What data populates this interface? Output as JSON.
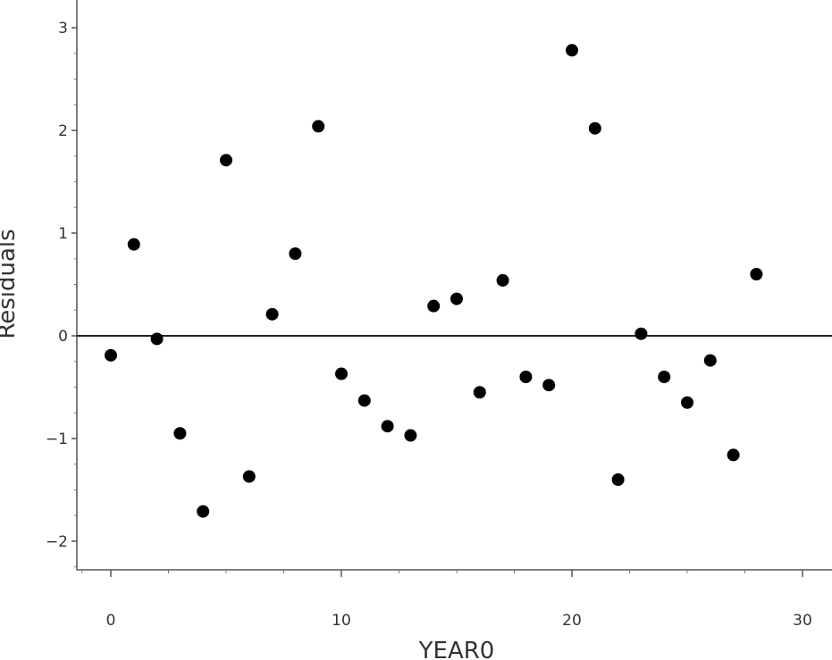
{
  "chart_data": {
    "type": "scatter",
    "title": "",
    "xlabel": "YEAR0",
    "ylabel": "Residuals",
    "xlim": [
      -1.5,
      31
    ],
    "ylim": [
      -2.3,
      3.3
    ],
    "x_ticks": [
      0,
      10,
      20,
      30
    ],
    "y_ticks": [
      -2,
      -1,
      0,
      1,
      2,
      3
    ],
    "x_tick_labels": [
      "0",
      "10",
      "20",
      "30"
    ],
    "y_tick_labels": [
      "−2",
      "−1",
      "0",
      "1",
      "2",
      "3"
    ],
    "reference_line_y": 0,
    "grid": false,
    "legend": "none",
    "marker_color": "#000000",
    "series": [
      {
        "points": [
          {
            "x": 0,
            "y": -0.19
          },
          {
            "x": 1,
            "y": 0.89
          },
          {
            "x": 2,
            "y": -0.03
          },
          {
            "x": 3,
            "y": -0.95
          },
          {
            "x": 4,
            "y": -1.71
          },
          {
            "x": 5,
            "y": 1.71
          },
          {
            "x": 6,
            "y": -1.37
          },
          {
            "x": 7,
            "y": 0.21
          },
          {
            "x": 8,
            "y": 0.8
          },
          {
            "x": 9,
            "y": 2.04
          },
          {
            "x": 10,
            "y": -0.37
          },
          {
            "x": 11,
            "y": -0.63
          },
          {
            "x": 12,
            "y": -0.88
          },
          {
            "x": 13,
            "y": -0.97
          },
          {
            "x": 14,
            "y": 0.29
          },
          {
            "x": 15,
            "y": 0.36
          },
          {
            "x": 16,
            "y": -0.55
          },
          {
            "x": 17,
            "y": 0.54
          },
          {
            "x": 18,
            "y": -0.4
          },
          {
            "x": 19,
            "y": -0.48
          },
          {
            "x": 20,
            "y": 2.78
          },
          {
            "x": 21,
            "y": 2.02
          },
          {
            "x": 22,
            "y": -1.4
          },
          {
            "x": 23,
            "y": 0.02
          },
          {
            "x": 24,
            "y": -0.4
          },
          {
            "x": 25,
            "y": -0.65
          },
          {
            "x": 26,
            "y": -0.24
          },
          {
            "x": 27,
            "y": -1.16
          },
          {
            "x": 28,
            "y": 0.6
          }
        ]
      }
    ]
  }
}
